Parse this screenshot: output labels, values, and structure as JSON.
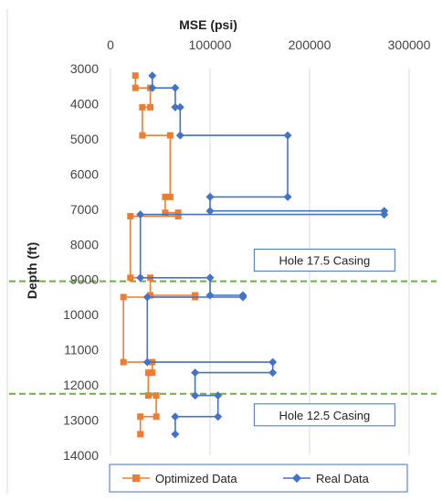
{
  "chart_data": {
    "type": "line",
    "title": "",
    "xlabel": "MSE (psi)",
    "ylabel": "Depth (ft)",
    "xlim": [
      0,
      300000
    ],
    "ylim": [
      14000,
      3000
    ],
    "y_reversed": true,
    "x_axis_position": "top",
    "x_ticks": [
      0,
      100000,
      200000,
      300000
    ],
    "x_tick_labels": [
      "0",
      "100000",
      "200000",
      "300000"
    ],
    "y_ticks": [
      3000,
      4000,
      5000,
      6000,
      7000,
      8000,
      9000,
      10000,
      11000,
      12000,
      13000,
      14000
    ],
    "y_tick_labels": [
      "3000",
      "4000",
      "5000",
      "6000",
      "7000",
      "8000",
      "9000",
      "10000",
      "11000",
      "12000",
      "13000",
      "14000"
    ],
    "grid": "vertical",
    "legend_position": "bottom",
    "series": [
      {
        "name": "Optimized Data",
        "color": "#ED7D31",
        "marker": "square",
        "points": [
          [
            25000,
            3200
          ],
          [
            25000,
            3550
          ],
          [
            40000,
            3550
          ],
          [
            40000,
            4100
          ],
          [
            32000,
            4100
          ],
          [
            32000,
            4900
          ],
          [
            60000,
            4900
          ],
          [
            60000,
            6650
          ],
          [
            55000,
            6650
          ],
          [
            55000,
            7100
          ],
          [
            68000,
            7100
          ],
          [
            68000,
            7200
          ],
          [
            20000,
            7200
          ],
          [
            20000,
            8950
          ],
          [
            40000,
            8950
          ],
          [
            40000,
            9450
          ],
          [
            85000,
            9450
          ],
          [
            85000,
            9500
          ],
          [
            13000,
            9500
          ],
          [
            13000,
            11350
          ],
          [
            42000,
            11350
          ],
          [
            42000,
            11650
          ],
          [
            38000,
            11650
          ],
          [
            38000,
            12300
          ],
          [
            46000,
            12300
          ],
          [
            46000,
            12900
          ],
          [
            30000,
            12900
          ],
          [
            30000,
            13400
          ]
        ]
      },
      {
        "name": "Real Data",
        "color": "#4472C4",
        "marker": "diamond",
        "points": [
          [
            42000,
            3200
          ],
          [
            42000,
            3550
          ],
          [
            65000,
            3550
          ],
          [
            65000,
            4100
          ],
          [
            70000,
            4100
          ],
          [
            70000,
            4900
          ],
          [
            178000,
            4900
          ],
          [
            178000,
            6650
          ],
          [
            100000,
            6650
          ],
          [
            100000,
            7050
          ],
          [
            275000,
            7050
          ],
          [
            275000,
            7150
          ],
          [
            30000,
            7150
          ],
          [
            30000,
            8950
          ],
          [
            100000,
            8950
          ],
          [
            100000,
            9450
          ],
          [
            133000,
            9450
          ],
          [
            133000,
            9500
          ],
          [
            37000,
            9500
          ],
          [
            37000,
            11350
          ],
          [
            163000,
            11350
          ],
          [
            163000,
            11650
          ],
          [
            85000,
            11650
          ],
          [
            85000,
            12300
          ],
          [
            108000,
            12300
          ],
          [
            108000,
            12900
          ],
          [
            65000,
            12900
          ],
          [
            65000,
            13400
          ]
        ]
      }
    ],
    "reference_lines": [
      {
        "depth": 9050,
        "color": "#70AD47",
        "style": "dashed"
      },
      {
        "depth": 12250,
        "color": "#70AD47",
        "style": "dashed"
      }
    ],
    "annotations": [
      {
        "text": "Hole 17.5 Casing",
        "x": 215000,
        "y": 8450
      },
      {
        "text": "Hole 12.5 Casing",
        "x": 215000,
        "y": 12850
      }
    ]
  }
}
